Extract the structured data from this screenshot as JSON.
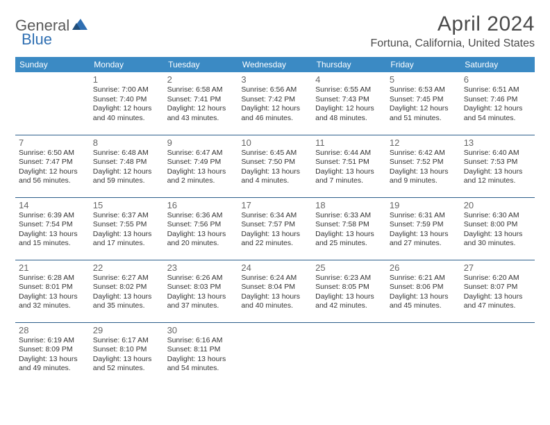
{
  "logo": {
    "general": "General",
    "blue": "Blue"
  },
  "title": "April 2024",
  "location": "Fortuna, California, United States",
  "colors": {
    "header_bg": "#3b8ac4",
    "header_text": "#ffffff",
    "row_border": "#2b5d8a",
    "logo_gray": "#5a5a5a",
    "logo_blue": "#2f6fb2",
    "text_gray": "#4a4a4a",
    "day_num": "#666666",
    "detail": "#333333"
  },
  "weekdays": [
    "Sunday",
    "Monday",
    "Tuesday",
    "Wednesday",
    "Thursday",
    "Friday",
    "Saturday"
  ],
  "weeks": [
    [
      null,
      {
        "n": "1",
        "sr": "7:00 AM",
        "ss": "7:40 PM",
        "dl": "12 hours and 40 minutes."
      },
      {
        "n": "2",
        "sr": "6:58 AM",
        "ss": "7:41 PM",
        "dl": "12 hours and 43 minutes."
      },
      {
        "n": "3",
        "sr": "6:56 AM",
        "ss": "7:42 PM",
        "dl": "12 hours and 46 minutes."
      },
      {
        "n": "4",
        "sr": "6:55 AM",
        "ss": "7:43 PM",
        "dl": "12 hours and 48 minutes."
      },
      {
        "n": "5",
        "sr": "6:53 AM",
        "ss": "7:45 PM",
        "dl": "12 hours and 51 minutes."
      },
      {
        "n": "6",
        "sr": "6:51 AM",
        "ss": "7:46 PM",
        "dl": "12 hours and 54 minutes."
      }
    ],
    [
      {
        "n": "7",
        "sr": "6:50 AM",
        "ss": "7:47 PM",
        "dl": "12 hours and 56 minutes."
      },
      {
        "n": "8",
        "sr": "6:48 AM",
        "ss": "7:48 PM",
        "dl": "12 hours and 59 minutes."
      },
      {
        "n": "9",
        "sr": "6:47 AM",
        "ss": "7:49 PM",
        "dl": "13 hours and 2 minutes."
      },
      {
        "n": "10",
        "sr": "6:45 AM",
        "ss": "7:50 PM",
        "dl": "13 hours and 4 minutes."
      },
      {
        "n": "11",
        "sr": "6:44 AM",
        "ss": "7:51 PM",
        "dl": "13 hours and 7 minutes."
      },
      {
        "n": "12",
        "sr": "6:42 AM",
        "ss": "7:52 PM",
        "dl": "13 hours and 9 minutes."
      },
      {
        "n": "13",
        "sr": "6:40 AM",
        "ss": "7:53 PM",
        "dl": "13 hours and 12 minutes."
      }
    ],
    [
      {
        "n": "14",
        "sr": "6:39 AM",
        "ss": "7:54 PM",
        "dl": "13 hours and 15 minutes."
      },
      {
        "n": "15",
        "sr": "6:37 AM",
        "ss": "7:55 PM",
        "dl": "13 hours and 17 minutes."
      },
      {
        "n": "16",
        "sr": "6:36 AM",
        "ss": "7:56 PM",
        "dl": "13 hours and 20 minutes."
      },
      {
        "n": "17",
        "sr": "6:34 AM",
        "ss": "7:57 PM",
        "dl": "13 hours and 22 minutes."
      },
      {
        "n": "18",
        "sr": "6:33 AM",
        "ss": "7:58 PM",
        "dl": "13 hours and 25 minutes."
      },
      {
        "n": "19",
        "sr": "6:31 AM",
        "ss": "7:59 PM",
        "dl": "13 hours and 27 minutes."
      },
      {
        "n": "20",
        "sr": "6:30 AM",
        "ss": "8:00 PM",
        "dl": "13 hours and 30 minutes."
      }
    ],
    [
      {
        "n": "21",
        "sr": "6:28 AM",
        "ss": "8:01 PM",
        "dl": "13 hours and 32 minutes."
      },
      {
        "n": "22",
        "sr": "6:27 AM",
        "ss": "8:02 PM",
        "dl": "13 hours and 35 minutes."
      },
      {
        "n": "23",
        "sr": "6:26 AM",
        "ss": "8:03 PM",
        "dl": "13 hours and 37 minutes."
      },
      {
        "n": "24",
        "sr": "6:24 AM",
        "ss": "8:04 PM",
        "dl": "13 hours and 40 minutes."
      },
      {
        "n": "25",
        "sr": "6:23 AM",
        "ss": "8:05 PM",
        "dl": "13 hours and 42 minutes."
      },
      {
        "n": "26",
        "sr": "6:21 AM",
        "ss": "8:06 PM",
        "dl": "13 hours and 45 minutes."
      },
      {
        "n": "27",
        "sr": "6:20 AM",
        "ss": "8:07 PM",
        "dl": "13 hours and 47 minutes."
      }
    ],
    [
      {
        "n": "28",
        "sr": "6:19 AM",
        "ss": "8:09 PM",
        "dl": "13 hours and 49 minutes."
      },
      {
        "n": "29",
        "sr": "6:17 AM",
        "ss": "8:10 PM",
        "dl": "13 hours and 52 minutes."
      },
      {
        "n": "30",
        "sr": "6:16 AM",
        "ss": "8:11 PM",
        "dl": "13 hours and 54 minutes."
      },
      null,
      null,
      null,
      null
    ]
  ],
  "labels": {
    "sunrise": "Sunrise:",
    "sunset": "Sunset:",
    "daylight": "Daylight:"
  }
}
